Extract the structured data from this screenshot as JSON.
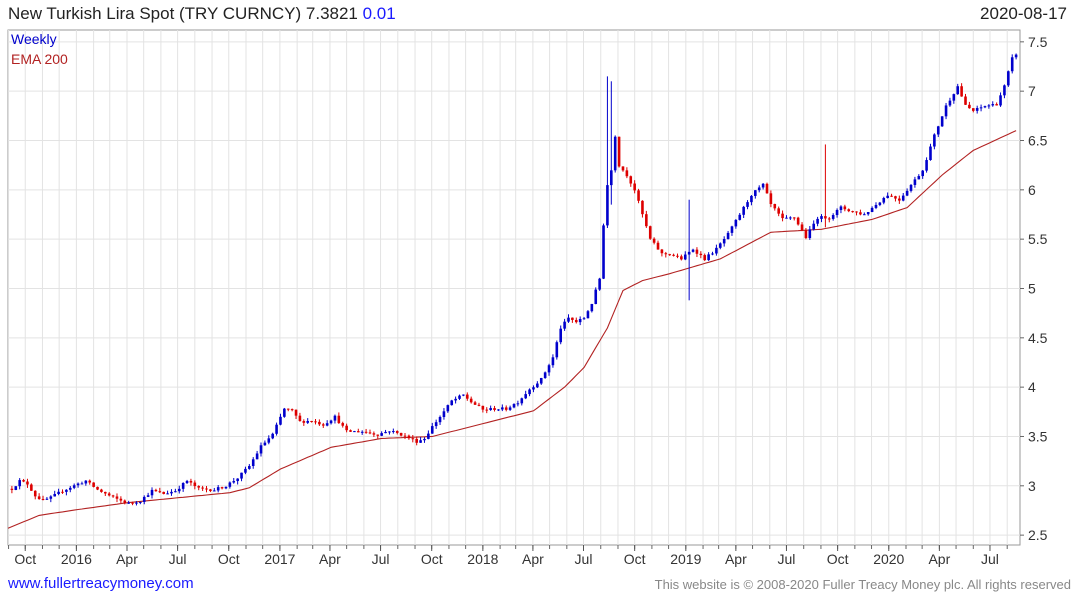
{
  "header": {
    "title": "New Turkish Lira Spot (TRY CURNCY) 7.3821",
    "change": "0.01",
    "date": "2020-08-17"
  },
  "footer": {
    "site": "www.fullertreacymoney.com",
    "copyright": "This website is © 2008-2020 Fuller Treacy Money plc. All rights reserved"
  },
  "chart_data": {
    "type": "candlestick",
    "legend": [
      "Weekly",
      "EMA 200"
    ],
    "colors": {
      "up": "#0000cc",
      "down": "#dd0000",
      "ema": "#b22222",
      "grid": "#e3e3e3"
    },
    "y_ticks": [
      2.5,
      3,
      3.5,
      4,
      4.5,
      5,
      5.5,
      6,
      6.5,
      7,
      7.5
    ],
    "ylim": [
      2.4,
      7.62
    ],
    "x_ticks": [
      {
        "label": "Oct",
        "date": "2015-10-01"
      },
      {
        "label": "2016",
        "date": "2016-01-01"
      },
      {
        "label": "Apr",
        "date": "2016-04-01"
      },
      {
        "label": "Jul",
        "date": "2016-07-01"
      },
      {
        "label": "Oct",
        "date": "2016-10-01"
      },
      {
        "label": "2017",
        "date": "2017-01-01"
      },
      {
        "label": "Apr",
        "date": "2017-04-01"
      },
      {
        "label": "Jul",
        "date": "2017-07-01"
      },
      {
        "label": "Oct",
        "date": "2017-10-01"
      },
      {
        "label": "2018",
        "date": "2018-01-01"
      },
      {
        "label": "Apr",
        "date": "2018-04-01"
      },
      {
        "label": "Jul",
        "date": "2018-07-01"
      },
      {
        "label": "Oct",
        "date": "2018-10-01"
      },
      {
        "label": "2019",
        "date": "2019-01-01"
      },
      {
        "label": "Apr",
        "date": "2019-04-01"
      },
      {
        "label": "Jul",
        "date": "2019-07-01"
      },
      {
        "label": "Oct",
        "date": "2019-10-01"
      },
      {
        "label": "2020",
        "date": "2020-01-01"
      },
      {
        "label": "Apr",
        "date": "2020-04-01"
      },
      {
        "label": "Jul",
        "date": "2020-07-01"
      }
    ],
    "x_range": [
      "2015-08-31",
      "2020-08-24"
    ],
    "close_anchors": [
      [
        "2015-09-07",
        2.97
      ],
      [
        "2015-09-21",
        3.05
      ],
      [
        "2015-10-05",
        3.02
      ],
      [
        "2015-10-19",
        2.9
      ],
      [
        "2015-11-02",
        2.85
      ],
      [
        "2015-11-16",
        2.88
      ],
      [
        "2015-12-07",
        2.95
      ],
      [
        "2016-01-04",
        3.02
      ],
      [
        "2016-01-18",
        3.05
      ],
      [
        "2016-02-08",
        2.96
      ],
      [
        "2016-03-07",
        2.88
      ],
      [
        "2016-04-04",
        2.82
      ],
      [
        "2016-04-25",
        2.85
      ],
      [
        "2016-05-16",
        2.95
      ],
      [
        "2016-06-06",
        2.92
      ],
      [
        "2016-06-27",
        2.95
      ],
      [
        "2016-07-18",
        3.05
      ],
      [
        "2016-08-08",
        2.97
      ],
      [
        "2016-09-05",
        2.96
      ],
      [
        "2016-09-26",
        3.0
      ],
      [
        "2016-10-17",
        3.08
      ],
      [
        "2016-11-07",
        3.2
      ],
      [
        "2016-11-28",
        3.4
      ],
      [
        "2016-12-19",
        3.52
      ],
      [
        "2017-01-09",
        3.78
      ],
      [
        "2017-01-23",
        3.76
      ],
      [
        "2017-02-06",
        3.65
      ],
      [
        "2017-02-27",
        3.66
      ],
      [
        "2017-03-20",
        3.62
      ],
      [
        "2017-04-10",
        3.7
      ],
      [
        "2017-05-01",
        3.55
      ],
      [
        "2017-05-29",
        3.55
      ],
      [
        "2017-06-26",
        3.52
      ],
      [
        "2017-07-17",
        3.56
      ],
      [
        "2017-08-07",
        3.52
      ],
      [
        "2017-09-04",
        3.45
      ],
      [
        "2017-09-18",
        3.48
      ],
      [
        "2017-10-02",
        3.6
      ],
      [
        "2017-10-16",
        3.7
      ],
      [
        "2017-11-06",
        3.86
      ],
      [
        "2017-11-27",
        3.92
      ],
      [
        "2017-12-11",
        3.85
      ],
      [
        "2018-01-01",
        3.77
      ],
      [
        "2018-01-22",
        3.78
      ],
      [
        "2018-02-12",
        3.78
      ],
      [
        "2018-03-05",
        3.85
      ],
      [
        "2018-03-26",
        3.98
      ],
      [
        "2018-04-16",
        4.08
      ],
      [
        "2018-05-07",
        4.3
      ],
      [
        "2018-05-21",
        4.6
      ],
      [
        "2018-06-04",
        4.7
      ],
      [
        "2018-06-18",
        4.66
      ],
      [
        "2018-07-02",
        4.7
      ],
      [
        "2018-07-16",
        4.85
      ],
      [
        "2018-07-30",
        5.1
      ],
      [
        "2018-08-06",
        5.65
      ],
      [
        "2018-08-13",
        6.05
      ],
      [
        "2018-08-20",
        6.2
      ],
      [
        "2018-08-27",
        6.55
      ],
      [
        "2018-09-03",
        6.25
      ],
      [
        "2018-09-17",
        6.15
      ],
      [
        "2018-10-01",
        6.0
      ],
      [
        "2018-10-15",
        5.75
      ],
      [
        "2018-10-29",
        5.5
      ],
      [
        "2018-11-19",
        5.35
      ],
      [
        "2018-12-03",
        5.35
      ],
      [
        "2018-12-24",
        5.3
      ],
      [
        "2019-01-14",
        5.4
      ],
      [
        "2019-02-04",
        5.3
      ],
      [
        "2019-02-25",
        5.4
      ],
      [
        "2019-03-18",
        5.55
      ],
      [
        "2019-04-08",
        5.75
      ],
      [
        "2019-04-29",
        5.95
      ],
      [
        "2019-05-20",
        6.05
      ],
      [
        "2019-06-03",
        5.85
      ],
      [
        "2019-06-24",
        5.7
      ],
      [
        "2019-07-15",
        5.72
      ],
      [
        "2019-08-05",
        5.52
      ],
      [
        "2019-08-26",
        5.72
      ],
      [
        "2019-09-16",
        5.72
      ],
      [
        "2019-10-07",
        5.82
      ],
      [
        "2019-10-28",
        5.78
      ],
      [
        "2019-11-18",
        5.75
      ],
      [
        "2019-12-09",
        5.85
      ],
      [
        "2019-12-30",
        5.95
      ],
      [
        "2020-01-20",
        5.9
      ],
      [
        "2020-02-10",
        6.05
      ],
      [
        "2020-03-02",
        6.2
      ],
      [
        "2020-03-23",
        6.55
      ],
      [
        "2020-04-13",
        6.85
      ],
      [
        "2020-05-04",
        7.05
      ],
      [
        "2020-05-18",
        6.85
      ],
      [
        "2020-06-01",
        6.8
      ],
      [
        "2020-06-22",
        6.85
      ],
      [
        "2020-07-13",
        6.87
      ],
      [
        "2020-07-27",
        7.05
      ],
      [
        "2020-08-10",
        7.33
      ],
      [
        "2020-08-17",
        7.38
      ]
    ],
    "spikes": [
      [
        "2018-08-13",
        7.15,
        5.65
      ],
      [
        "2018-08-20",
        7.1,
        5.85
      ],
      [
        "2019-01-07",
        5.9,
        4.88
      ],
      [
        "2019-09-09",
        6.46,
        5.62
      ]
    ],
    "ema_anchors": [
      [
        "2015-08-31",
        2.57
      ],
      [
        "2015-10-26",
        2.7
      ],
      [
        "2016-01-04",
        2.76
      ],
      [
        "2016-04-04",
        2.83
      ],
      [
        "2016-07-04",
        2.88
      ],
      [
        "2016-10-03",
        2.93
      ],
      [
        "2016-11-07",
        2.98
      ],
      [
        "2017-01-02",
        3.17
      ],
      [
        "2017-04-03",
        3.39
      ],
      [
        "2017-07-03",
        3.48
      ],
      [
        "2017-10-02",
        3.5
      ],
      [
        "2018-01-01",
        3.63
      ],
      [
        "2018-04-02",
        3.76
      ],
      [
        "2018-05-28",
        4.0
      ],
      [
        "2018-07-02",
        4.2
      ],
      [
        "2018-08-13",
        4.6
      ],
      [
        "2018-09-10",
        4.98
      ],
      [
        "2018-10-15",
        5.08
      ],
      [
        "2018-12-03",
        5.15
      ],
      [
        "2019-03-04",
        5.3
      ],
      [
        "2019-06-03",
        5.57
      ],
      [
        "2019-09-02",
        5.6
      ],
      [
        "2019-12-02",
        5.7
      ],
      [
        "2020-02-03",
        5.82
      ],
      [
        "2020-04-06",
        6.15
      ],
      [
        "2020-06-01",
        6.4
      ],
      [
        "2020-08-17",
        6.6
      ]
    ]
  }
}
